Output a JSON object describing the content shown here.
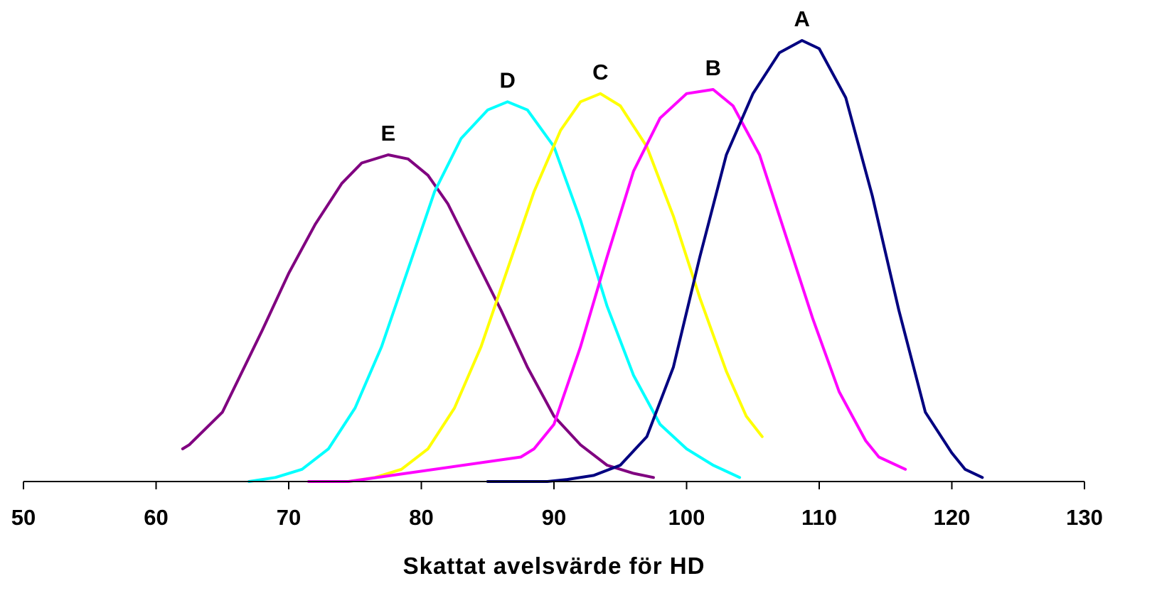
{
  "chart_data": {
    "type": "line",
    "xlabel": "Skattat avelsvärde för HD",
    "ylabel": "",
    "xlim": [
      50,
      130
    ],
    "x_ticks": [
      50,
      60,
      70,
      80,
      90,
      100,
      110,
      120,
      130
    ],
    "y_axis_visible": false,
    "grid": false,
    "legend": "none",
    "series": [
      {
        "name": "E",
        "color": "#800080",
        "points": [
          [
            62.0,
            0.08
          ],
          [
            62.5,
            0.09
          ],
          [
            65.0,
            0.17
          ],
          [
            68.0,
            0.37
          ],
          [
            70.0,
            0.51
          ],
          [
            72.0,
            0.63
          ],
          [
            74.0,
            0.73
          ],
          [
            75.5,
            0.78
          ],
          [
            77.5,
            0.8
          ],
          [
            79.0,
            0.79
          ],
          [
            80.5,
            0.75
          ],
          [
            82.0,
            0.68
          ],
          [
            84.0,
            0.55
          ],
          [
            86.0,
            0.42
          ],
          [
            88.0,
            0.28
          ],
          [
            90.0,
            0.16
          ],
          [
            92.0,
            0.09
          ],
          [
            94.0,
            0.04
          ],
          [
            96.0,
            0.02
          ],
          [
            97.5,
            0.01
          ]
        ]
      },
      {
        "name": "D",
        "color": "#00FFFF",
        "points": [
          [
            67.0,
            0.0
          ],
          [
            69.0,
            0.01
          ],
          [
            71.0,
            0.03
          ],
          [
            73.0,
            0.08
          ],
          [
            75.0,
            0.18
          ],
          [
            77.0,
            0.33
          ],
          [
            79.0,
            0.52
          ],
          [
            81.0,
            0.71
          ],
          [
            83.0,
            0.84
          ],
          [
            85.0,
            0.91
          ],
          [
            86.5,
            0.93
          ],
          [
            88.0,
            0.91
          ],
          [
            90.0,
            0.82
          ],
          [
            92.0,
            0.64
          ],
          [
            94.0,
            0.43
          ],
          [
            96.0,
            0.26
          ],
          [
            98.0,
            0.14
          ],
          [
            100.0,
            0.08
          ],
          [
            102.0,
            0.04
          ],
          [
            104.0,
            0.01
          ]
        ]
      },
      {
        "name": "C",
        "color": "#FFFF00",
        "points": [
          [
            74.5,
            0.0
          ],
          [
            76.5,
            0.01
          ],
          [
            78.5,
            0.03
          ],
          [
            80.5,
            0.08
          ],
          [
            82.5,
            0.18
          ],
          [
            84.5,
            0.33
          ],
          [
            86.5,
            0.52
          ],
          [
            88.5,
            0.71
          ],
          [
            90.5,
            0.86
          ],
          [
            92.0,
            0.93
          ],
          [
            93.5,
            0.95
          ],
          [
            95.0,
            0.92
          ],
          [
            97.0,
            0.82
          ],
          [
            99.0,
            0.65
          ],
          [
            101.0,
            0.45
          ],
          [
            103.0,
            0.27
          ],
          [
            104.5,
            0.16
          ],
          [
            105.7,
            0.11
          ]
        ]
      },
      {
        "name": "B",
        "color": "#FF00FF",
        "points": [
          [
            71.5,
            0.0
          ],
          [
            74.5,
            0.0
          ],
          [
            87.5,
            0.06
          ],
          [
            88.5,
            0.08
          ],
          [
            90.0,
            0.14
          ],
          [
            92.0,
            0.33
          ],
          [
            94.0,
            0.55
          ],
          [
            96.0,
            0.76
          ],
          [
            98.0,
            0.89
          ],
          [
            100.0,
            0.95
          ],
          [
            102.0,
            0.96
          ],
          [
            103.5,
            0.92
          ],
          [
            105.5,
            0.8
          ],
          [
            107.5,
            0.6
          ],
          [
            109.5,
            0.4
          ],
          [
            111.5,
            0.22
          ],
          [
            113.5,
            0.1
          ],
          [
            114.5,
            0.06
          ],
          [
            116.5,
            0.03
          ]
        ]
      },
      {
        "name": "A",
        "color": "#000080",
        "points": [
          [
            85.0,
            0.0
          ],
          [
            89.5,
            0.0
          ],
          [
            91.0,
            0.005
          ],
          [
            93.0,
            0.015
          ],
          [
            95.0,
            0.04
          ],
          [
            97.0,
            0.11
          ],
          [
            99.0,
            0.28
          ],
          [
            101.0,
            0.55
          ],
          [
            103.0,
            0.8
          ],
          [
            105.0,
            0.95
          ],
          [
            107.0,
            1.05
          ],
          [
            108.7,
            1.08
          ],
          [
            110.0,
            1.06
          ],
          [
            112.0,
            0.94
          ],
          [
            114.0,
            0.7
          ],
          [
            116.0,
            0.42
          ],
          [
            118.0,
            0.17
          ],
          [
            120.0,
            0.07
          ],
          [
            121.0,
            0.03
          ],
          [
            122.3,
            0.01
          ]
        ]
      }
    ]
  }
}
